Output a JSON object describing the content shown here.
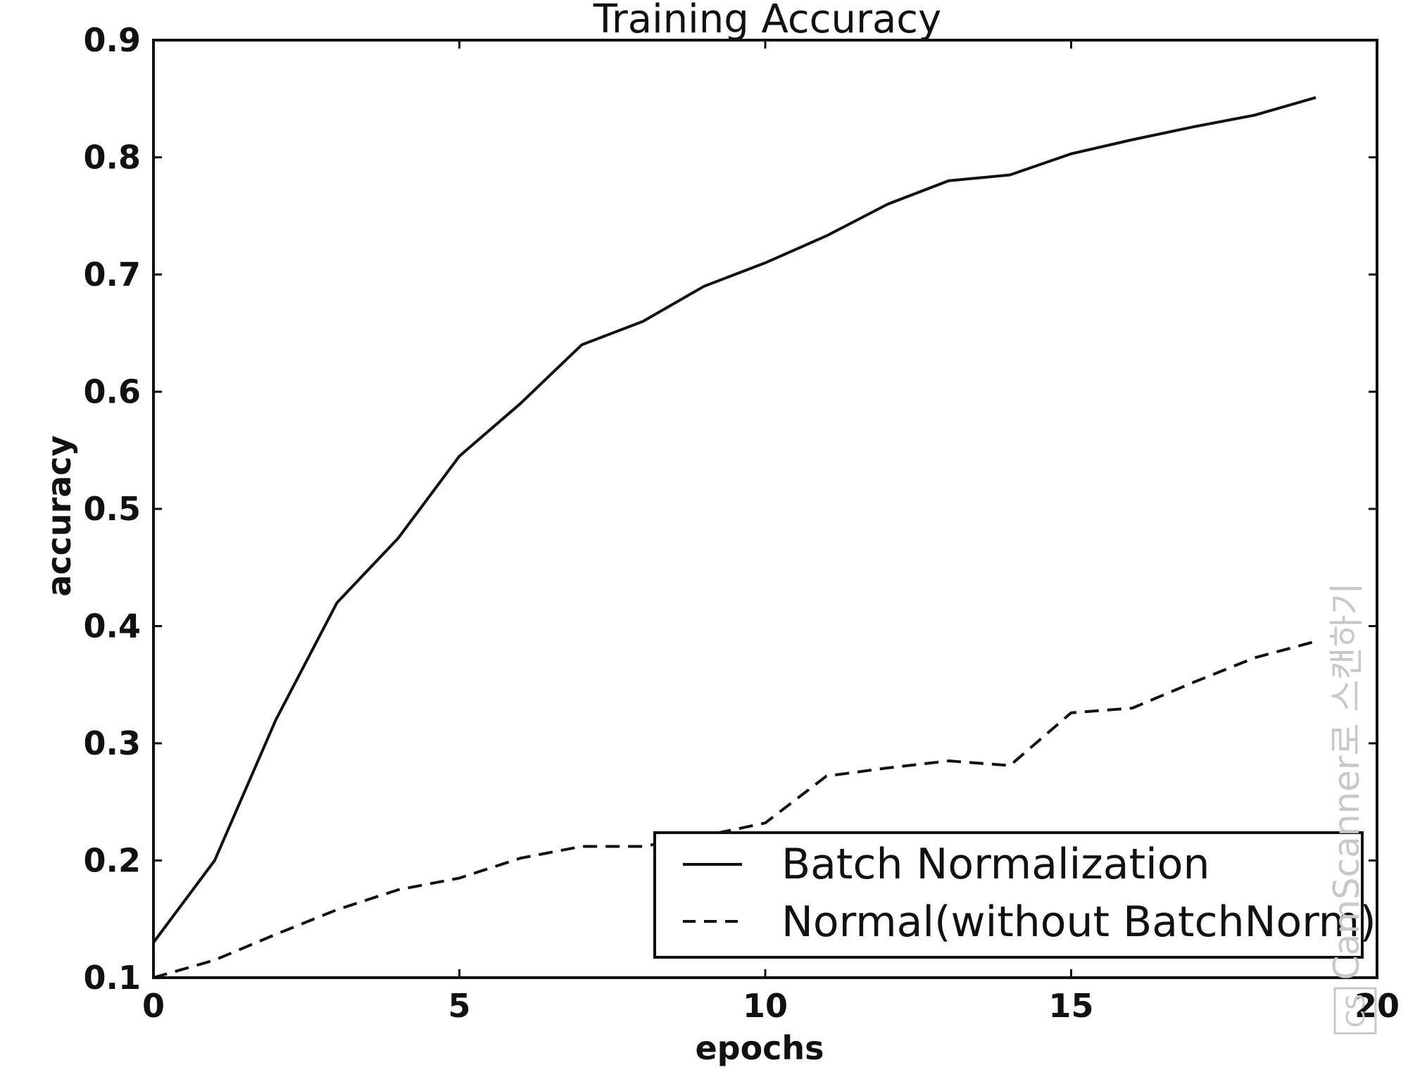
{
  "chart_data": {
    "type": "line",
    "title": "Training Accuracy",
    "xlabel": "epochs",
    "ylabel": "accuracy",
    "xlim": [
      0,
      20
    ],
    "ylim": [
      0.1,
      0.9
    ],
    "xticks": [
      0,
      5,
      10,
      15,
      20
    ],
    "xtick_labels": [
      "0",
      "5",
      "10",
      "15",
      "20"
    ],
    "yticks": [
      0.1,
      0.2,
      0.3,
      0.4,
      0.5,
      0.6,
      0.7,
      0.8,
      0.9
    ],
    "ytick_labels": [
      "0.1",
      "0.2",
      "0.3",
      "0.4",
      "0.5",
      "0.6",
      "0.7",
      "0.8",
      "0.9"
    ],
    "grid": false,
    "legend_position": "bottom-right",
    "x": [
      0,
      1,
      2,
      3,
      4,
      5,
      6,
      7,
      8,
      9,
      10,
      11,
      12,
      13,
      14,
      15,
      16,
      17,
      18,
      19
    ],
    "series": [
      {
        "name": "Batch Normalization",
        "style": "solid",
        "color": "#111111",
        "values": [
          0.13,
          0.2,
          0.32,
          0.42,
          0.475,
          0.545,
          0.59,
          0.64,
          0.66,
          0.69,
          0.71,
          0.733,
          0.76,
          0.78,
          0.785,
          0.803,
          0.815,
          0.826,
          0.836,
          0.851
        ]
      },
      {
        "name": "Normal(without BatchNorm)",
        "style": "dashed",
        "color": "#111111",
        "values": [
          0.1,
          0.115,
          0.137,
          0.158,
          0.175,
          0.185,
          0.202,
          0.212,
          0.212,
          0.221,
          0.232,
          0.272,
          0.279,
          0.285,
          0.281,
          0.326,
          0.33,
          0.352,
          0.373,
          0.387
        ]
      }
    ]
  },
  "watermark": {
    "text": "CamScanner로 스캔하기",
    "badge": "CS"
  }
}
